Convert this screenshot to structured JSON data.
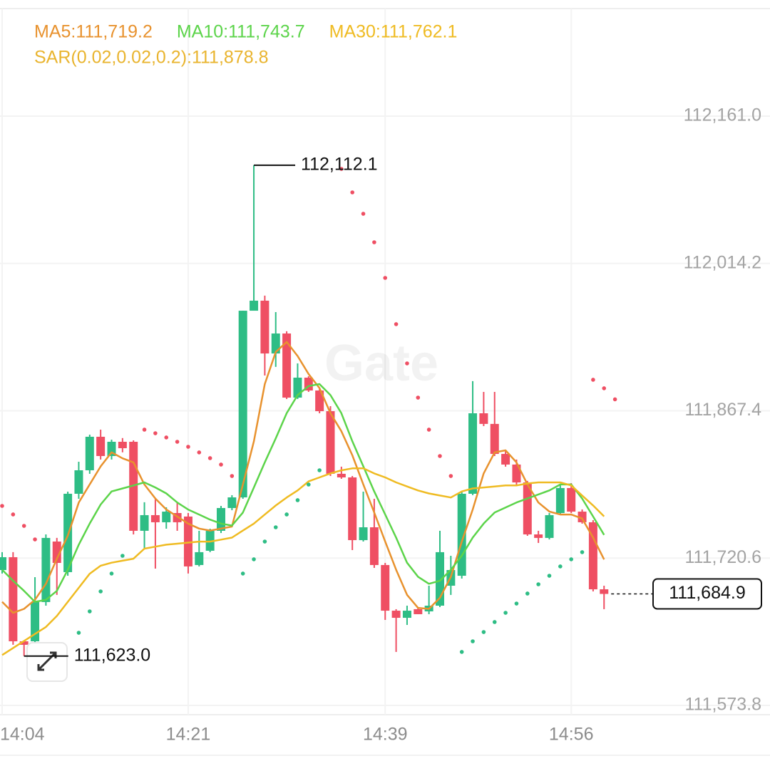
{
  "chart_data": {
    "type": "candlestick",
    "watermark": "Gate",
    "categories": [
      "14:04",
      null,
      null,
      null,
      null,
      null,
      null,
      null,
      null,
      null,
      null,
      null,
      null,
      null,
      null,
      null,
      null,
      "14:21",
      null,
      null,
      null,
      null,
      null,
      null,
      null,
      null,
      null,
      null,
      null,
      null,
      null,
      null,
      null,
      null,
      null,
      "14:39",
      null,
      null,
      null,
      null,
      null,
      null,
      null,
      null,
      null,
      null,
      null,
      null,
      null,
      null,
      null,
      null,
      "14:56",
      null,
      null,
      null,
      null
    ],
    "candles": {
      "up_color": "#2ebd85",
      "down_color": "#ef4f63",
      "open": [
        111708.7,
        111721.5,
        111637.7,
        111637.7,
        111676.8,
        111737.1,
        111706.6,
        111784.7,
        111808.1,
        111841.5,
        111822.3,
        111836.5,
        111836.5,
        111747.8,
        111763.4,
        111756.3,
        111765.5,
        111762.0,
        111713.7,
        111727.9,
        111747.8,
        111770.5,
        111781.1,
        111967.1,
        111977.1,
        111924.5,
        111944.4,
        111880.5,
        111900.4,
        111887.6,
        111867.0,
        111804.6,
        111801.0,
        111738.5,
        111751.3,
        111713.7,
        111668.2,
        111661.1,
        111669.7,
        111667.5,
        111673.2,
        111693.1,
        111703.0,
        111784.7,
        111864.9,
        111854.3,
        111824.4,
        111813.8,
        111796.0,
        111744.2,
        111740.7,
        111765.5,
        111790.4,
        111766.9,
        111756.3,
        111689.5,
        null
      ],
      "high": [
        111726.5,
        111726.5,
        111637.7,
        111701.6,
        111744.2,
        111740.7,
        111786.8,
        111816.6,
        111843.6,
        111848.6,
        111838.6,
        111840.2,
        111837.9,
        111776.2,
        111779.7,
        111771.2,
        111776.2,
        111765.5,
        111747.8,
        111749.9,
        111772.6,
        111783.3,
        111967.1,
        112112.1,
        111982.1,
        111965.7,
        111946.6,
        111914.6,
        111901.8,
        111889.8,
        111872.0,
        111811.7,
        111802.4,
        111786.8,
        111779.7,
        111715.8,
        111669.7,
        111673.2,
        111671.8,
        111693.1,
        111747.8,
        111722.9,
        111786.8,
        111896.9,
        111886.2,
        111886.2,
        111828.0,
        111818.8,
        111797.5,
        111747.8,
        111765.5,
        111793.9,
        111795.3,
        111769.1,
        111758.4,
        111693.1,
        null
      ],
      "low": [
        111705.2,
        111634.2,
        111623.0,
        111634.2,
        111673.2,
        111683.9,
        111703.0,
        111779.7,
        111804.6,
        111818.8,
        111818.8,
        111826.0,
        111744.2,
        111730.0,
        111710.1,
        111749.9,
        111747.8,
        111705.2,
        111712.3,
        111726.5,
        111745.6,
        111768.3,
        111779.7,
        111967.1,
        111902.5,
        111911.1,
        111879.1,
        111879.1,
        111886.2,
        111864.9,
        111802.4,
        111799.6,
        111728.6,
        111737.1,
        111710.8,
        111659.0,
        111627.1,
        111654.0,
        111664.7,
        111664.7,
        111671.8,
        111683.9,
        111700.2,
        111783.3,
        111852.1,
        111822.3,
        111811.7,
        111793.9,
        111742.8,
        111735.7,
        111739.2,
        111763.4,
        111765.5,
        111754.9,
        111687.4,
        111669.7,
        null
      ],
      "close": [
        111721.5,
        111637.7,
        111634.2,
        111676.8,
        111740.7,
        111715.8,
        111784.7,
        111808.1,
        111841.5,
        111822.3,
        111836.5,
        111830.1,
        111747.8,
        111763.4,
        111756.3,
        111766.9,
        111756.3,
        111712.3,
        111726.5,
        111747.8,
        111770.5,
        111781.1,
        111967.1,
        111977.1,
        111924.5,
        111944.4,
        111880.5,
        111900.4,
        111887.6,
        111867.0,
        111804.6,
        111801.0,
        111738.5,
        111751.3,
        111713.7,
        111668.2,
        111661.1,
        111668.2,
        111664.7,
        111673.2,
        111726.5,
        111708.7,
        111784.7,
        111864.9,
        111854.3,
        111824.4,
        111813.8,
        111796.0,
        111744.2,
        111740.7,
        111763.4,
        111790.4,
        111766.9,
        111756.3,
        111689.5,
        111684.9,
        null
      ]
    },
    "series": [
      {
        "name": "MA5:111,719.2",
        "color": "#e8922e",
        "values": [
          111677,
          111666,
          111670,
          111679,
          111695,
          111720,
          111743,
          111776,
          111794,
          111812,
          111826,
          111820,
          111816,
          111794,
          111780,
          111769,
          111762,
          111755,
          111750,
          111748,
          111750,
          111752,
          111794,
          111837,
          111894,
          111926,
          111936,
          111922,
          111904,
          111890,
          111865,
          111847,
          111823,
          111794,
          111766,
          111737,
          111709,
          111684,
          111671,
          111670,
          111681,
          111702,
          111737,
          111769,
          111805,
          111826,
          111828,
          111816,
          111794,
          111776,
          111767,
          111764,
          111764,
          111760,
          111741,
          111719.2,
          null
        ]
      },
      {
        "name": "MA10:111,743.7",
        "color": "#5cd44a",
        "values": [
          111709,
          111698,
          111688,
          111677,
          111679,
          111688,
          111709,
          111734,
          111755,
          111774,
          111787,
          111790,
          111793,
          111796,
          111791,
          111785,
          111776,
          111769,
          111764,
          111759,
          111755,
          111753,
          111766,
          111791,
          111816,
          111840,
          111865,
          111883,
          111892,
          111894,
          111883,
          111865,
          111837,
          111812,
          111787,
          111764,
          111741,
          111716,
          111702,
          111695,
          111698,
          111709,
          111723,
          111741,
          111755,
          111766,
          111771,
          111776,
          111780,
          111784,
          111788,
          111794,
          111794,
          111780,
          111762,
          111743.7,
          null
        ]
      },
      {
        "name": "MA30:111,762.1",
        "color": "#efbb22",
        "values": [
          111624,
          111631,
          111638,
          111645,
          111652,
          111663,
          111677,
          111691,
          111705,
          111713,
          111716,
          111718,
          111720,
          111730,
          111732,
          111734,
          111735,
          111736,
          111737,
          111737,
          111739,
          111741,
          111748,
          111755,
          111764,
          111773,
          111781,
          111788,
          111797,
          111801,
          111805,
          111808,
          111810,
          111810,
          111805,
          111801,
          111796,
          111792,
          111788,
          111785,
          111783,
          111781,
          111787,
          111790,
          111791,
          111792,
          111793,
          111793,
          111795,
          111796,
          111796,
          111796,
          111793,
          111783,
          111773,
          111762.1,
          null
        ]
      },
      {
        "name": "SAR(0.02,0.02,0.2):111,878.8",
        "color": "#e9b42e",
        "dots": true,
        "values": [
          111772.6,
          111764.1,
          111752.7,
          111739.2,
          null,
          null,
          null,
          111646.2,
          111667.5,
          111687.4,
          111705.2,
          111722.9,
          null,
          111848.6,
          111845.0,
          111840.8,
          111836.5,
          111831.5,
          111825.9,
          111820.2,
          111813.8,
          111802.4,
          111705.2,
          111719.4,
          111737.1,
          111751.3,
          111764.1,
          111778.3,
          111793.9,
          111808.1,
          null,
          112108.4,
          112085.0,
          112063.7,
          112035.3,
          111999.8,
          111953.7,
          111914.6,
          111880.5,
          111848.6,
          111822.3,
          111802.4,
          111627.1,
          111637.7,
          111646.9,
          111656.9,
          111666.1,
          111675.3,
          111685.3,
          111694.5,
          111703.0,
          111712.3,
          111719.4,
          111726.5,
          111898.3,
          111889.8,
          111878.8
        ]
      }
    ],
    "annotations": {
      "high": {
        "value": 112112.1,
        "label": "112,112.1"
      },
      "low": {
        "value": 111623.0,
        "label": "111,623.0"
      },
      "last": {
        "value": 111684.9,
        "label": "111,684.9"
      }
    },
    "ylim": [
      111566.7,
      112269.6
    ],
    "yticks": [
      {
        "value": 111573.8,
        "label": "111,573.8"
      },
      {
        "value": 111720.6,
        "label": "111,720.6"
      },
      {
        "value": 111867.4,
        "label": "111,867.4"
      },
      {
        "value": 112014.2,
        "label": "112,014.2"
      },
      {
        "value": 112161.0,
        "label": "112,161.0"
      }
    ],
    "grid": true
  }
}
